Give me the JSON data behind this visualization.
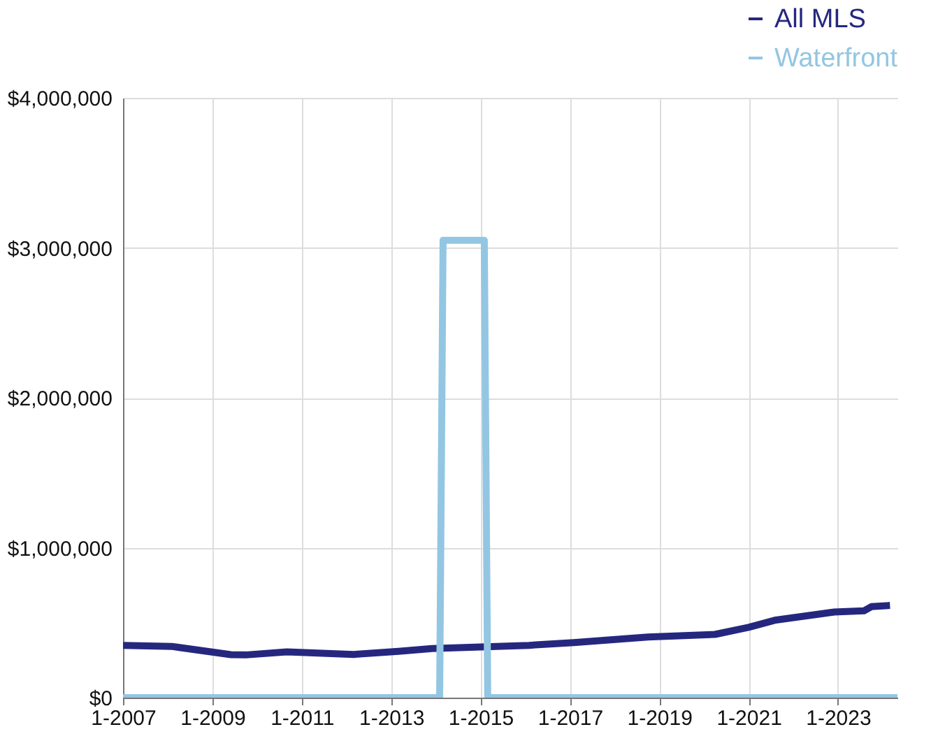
{
  "chart_data": {
    "type": "line",
    "x": [
      "2007-01",
      "2008-02",
      "2009-06",
      "2009-10",
      "2010-09",
      "2012-03",
      "2013-03",
      "2013-12",
      "2015-01",
      "2016-02",
      "2017-02",
      "2018-10",
      "2020-04",
      "2021-01",
      "2021-08",
      "2022-12",
      "2023-08",
      "2023-10",
      "2024-03"
    ],
    "series": [
      {
        "name": "All MLS",
        "color": "#25277f",
        "values": [
          349000,
          342000,
          287000,
          285000,
          305000,
          288000,
          309000,
          327000,
          338000,
          349000,
          367000,
          404000,
          422000,
          469000,
          516000,
          571000,
          579000,
          607000,
          615000
        ]
      },
      {
        "name": "Waterfront",
        "color": "#93c6e2",
        "x": [
          "2007-01",
          "2014-02",
          "2014-03",
          "2015-02",
          "2015-03",
          "2024-05"
        ],
        "values": [
          0,
          0,
          3050000,
          3050000,
          0,
          0
        ]
      }
    ],
    "xlim": [
      "2007-01",
      "2024-05"
    ],
    "xticks": [
      {
        "value": "2007-01",
        "label": "1-2007"
      },
      {
        "value": "2009-01",
        "label": "1-2009"
      },
      {
        "value": "2011-01",
        "label": "1-2011"
      },
      {
        "value": "2013-01",
        "label": "1-2013"
      },
      {
        "value": "2015-01",
        "label": "1-2015"
      },
      {
        "value": "2017-01",
        "label": "1-2017"
      },
      {
        "value": "2019-01",
        "label": "1-2019"
      },
      {
        "value": "2021-01",
        "label": "1-2021"
      },
      {
        "value": "2023-01",
        "label": "1-2023"
      }
    ],
    "ylim": [
      0,
      4000000
    ],
    "yticks": [
      {
        "value": 0,
        "label": "$0"
      },
      {
        "value": 1000000,
        "label": "$1,000,000"
      },
      {
        "value": 2000000,
        "label": "$2,000,000"
      },
      {
        "value": 3000000,
        "label": "$3,000,000"
      },
      {
        "value": 4000000,
        "label": "$4,000,000"
      }
    ],
    "grid": true,
    "legend": "top right",
    "marker": "none",
    "line_style": "solid"
  }
}
